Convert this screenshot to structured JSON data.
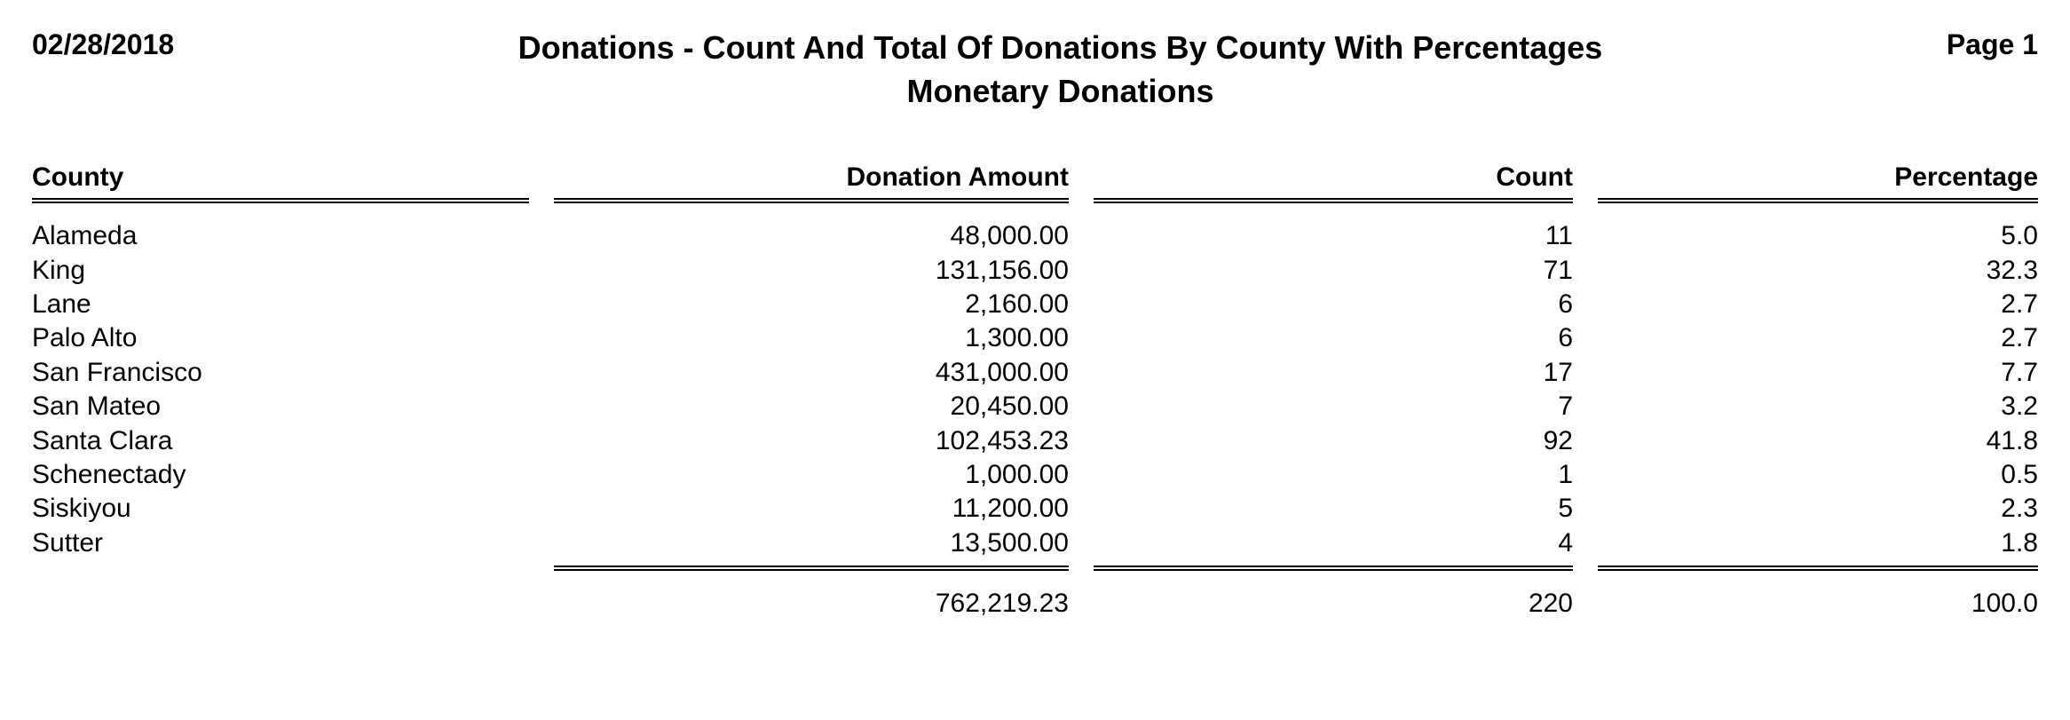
{
  "header": {
    "date": "02/28/2018",
    "title_line1": "Donations - Count And Total Of Donations By County With Percentages",
    "title_line2": "Monetary Donations",
    "page_label": "Page 1"
  },
  "columns": {
    "county": "County",
    "amount": "Donation Amount",
    "count": "Count",
    "percentage": "Percentage"
  },
  "rows": [
    {
      "county": "Alameda",
      "amount": "48,000.00",
      "count": "11",
      "percentage": "5.0"
    },
    {
      "county": "King",
      "amount": "131,156.00",
      "count": "71",
      "percentage": "32.3"
    },
    {
      "county": "Lane",
      "amount": "2,160.00",
      "count": "6",
      "percentage": "2.7"
    },
    {
      "county": "Palo Alto",
      "amount": "1,300.00",
      "count": "6",
      "percentage": "2.7"
    },
    {
      "county": "San Francisco",
      "amount": "431,000.00",
      "count": "17",
      "percentage": "7.7"
    },
    {
      "county": "San Mateo",
      "amount": "20,450.00",
      "count": "7",
      "percentage": "3.2"
    },
    {
      "county": "Santa Clara",
      "amount": "102,453.23",
      "count": "92",
      "percentage": "41.8"
    },
    {
      "county": "Schenectady",
      "amount": "1,000.00",
      "count": "1",
      "percentage": "0.5"
    },
    {
      "county": "Siskiyou",
      "amount": "11,200.00",
      "count": "5",
      "percentage": "2.3"
    },
    {
      "county": "Sutter",
      "amount": "13,500.00",
      "count": "4",
      "percentage": "1.8"
    }
  ],
  "totals": {
    "amount": "762,219.23",
    "count": "220",
    "percentage": "100.0"
  },
  "style": {
    "background_color": "#ffffff",
    "text_color": "#000000",
    "rule_color": "#000000",
    "title_fontsize_pt": 27,
    "header_fontsize_pt": 23,
    "body_fontsize_pt": 23,
    "font_family": "Arial"
  }
}
